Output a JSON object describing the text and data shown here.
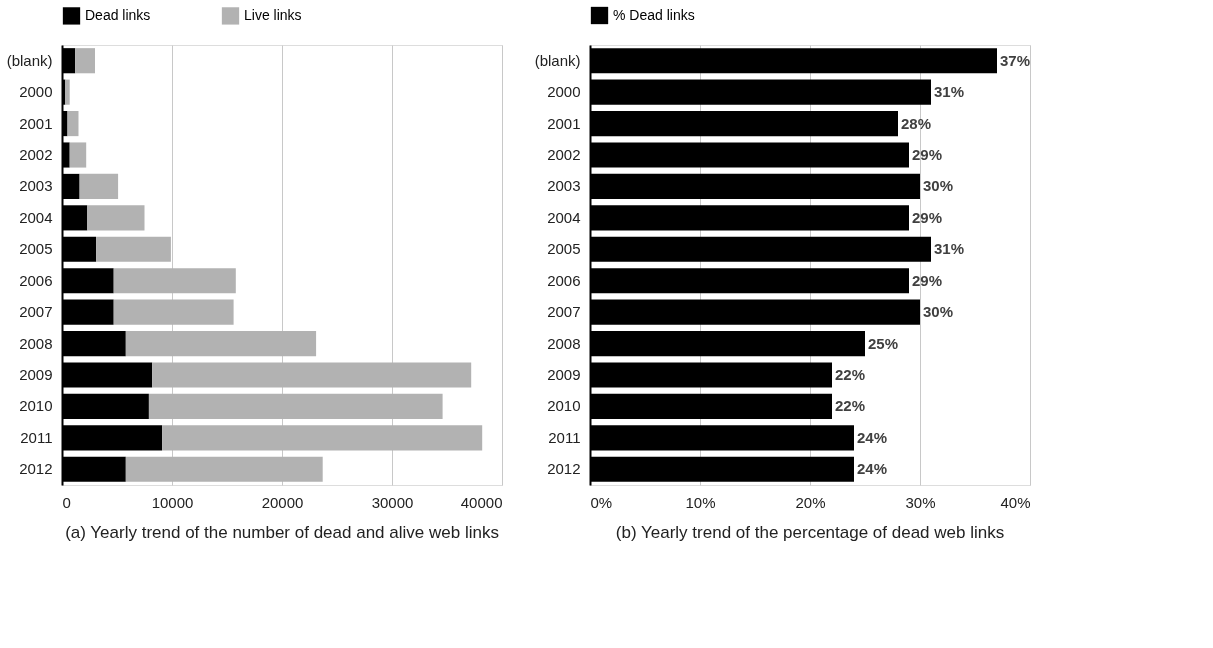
{
  "chart_data": [
    {
      "type": "bar",
      "title": "(a) Yearly trend of the number of dead and alive web links",
      "orientation": "horizontal",
      "stacked": true,
      "categories": [
        "(blank)",
        "2000",
        "2001",
        "2002",
        "2003",
        "2004",
        "2005",
        "2006",
        "2007",
        "2008",
        "2009",
        "2010",
        "2011",
        "2012"
      ],
      "series": [
        {
          "name": "Dead links",
          "color": "#000000",
          "values": [
            1200,
            300,
            500,
            700,
            1600,
            2300,
            3100,
            4700,
            4700,
            5800,
            8200,
            7900,
            9100,
            5800
          ]
        },
        {
          "name": "Live links",
          "color": "#b2b2b2",
          "values": [
            1800,
            400,
            1000,
            1500,
            3500,
            5200,
            6800,
            11100,
            10900,
            17300,
            29000,
            26700,
            29100,
            17900
          ]
        }
      ],
      "xlim": [
        0,
        40000
      ],
      "xticks": [
        0,
        10000,
        20000,
        30000,
        40000
      ],
      "grid": "x",
      "legend": "top"
    },
    {
      "type": "bar",
      "title": "(b) Yearly trend of the percentage of dead web links",
      "orientation": "horizontal",
      "categories": [
        "(blank)",
        "2000",
        "2001",
        "2002",
        "2003",
        "2004",
        "2005",
        "2006",
        "2007",
        "2008",
        "2009",
        "2010",
        "2011",
        "2012"
      ],
      "series": [
        {
          "name": "% Dead links",
          "color": "#000000",
          "values": [
            37,
            31,
            28,
            29,
            30,
            29,
            31,
            29,
            30,
            25,
            22,
            22,
            24,
            24
          ],
          "value_labels": [
            "37%",
            "31%",
            "28%",
            "29%",
            "30%",
            "29%",
            "31%",
            "29%",
            "30%",
            "25%",
            "22%",
            "22%",
            "24%",
            "24%"
          ]
        }
      ],
      "xlim": [
        0,
        40
      ],
      "xticks": [
        {
          "value": 0,
          "label": "0%"
        },
        {
          "value": 10,
          "label": "10%"
        },
        {
          "value": 20,
          "label": "20%"
        },
        {
          "value": 30,
          "label": "30%"
        },
        {
          "value": 40,
          "label": "40%"
        }
      ],
      "grid": "x",
      "legend": "top"
    }
  ]
}
